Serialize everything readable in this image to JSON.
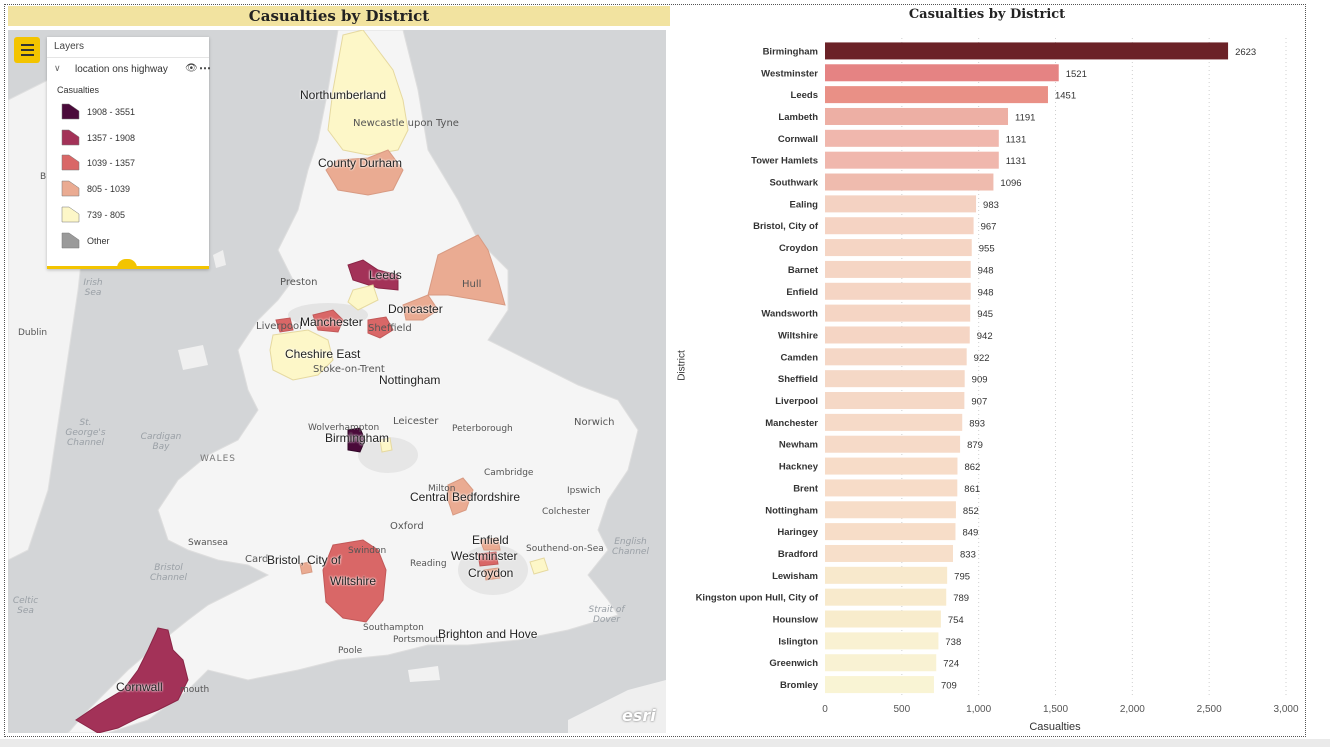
{
  "map": {
    "title": "Casualties by District",
    "legend": {
      "header": "Layers",
      "layer_name": "location ons highway",
      "subtitle": "Casualties",
      "items": [
        {
          "label": "1908 - 3551",
          "color": "#4a0a3a"
        },
        {
          "label": "1357 - 1908",
          "color": "#a33258"
        },
        {
          "label": "1039 - 1357",
          "color": "#d96767"
        },
        {
          "label": "805 - 1039",
          "color": "#eaab92"
        },
        {
          "label": "739 - 805",
          "color": "#fdf7c8"
        },
        {
          "label": "Other",
          "color": "#9a9a9a"
        }
      ]
    },
    "labels": {
      "northumberland": "Northumberland",
      "newcastle": "Newcastle upon Tyne",
      "county_durham": "County Durham",
      "preston": "Preston",
      "leeds": "Leeds",
      "hull": "Hull",
      "doncaster": "Doncaster",
      "liverpool": "Liverpool",
      "manchester": "Manchester",
      "sheffield": "Sheffield",
      "cheshire_east": "Cheshire East",
      "stoke": "Stoke-on-Trent",
      "nottingham": "Nottingham",
      "norwich": "Norwich",
      "wolverhampton": "Wolverhampton",
      "leicester": "Leicester",
      "birmingham": "Birmingham",
      "peterborough": "Peterborough",
      "wales": "WALES",
      "cambridge": "Cambridge",
      "milton": "Milton",
      "central_beds": "Central Bedfordshire",
      "ipswich": "Ipswich",
      "colchester": "Colchester",
      "oxford": "Oxford",
      "enfield": "Enfield",
      "swansea": "Swansea",
      "swindon": "Swindon",
      "card": "Card",
      "bristol": "Bristol, City of",
      "reading": "Reading",
      "westminster": "Westminster",
      "southend": "Southend-on-Sea",
      "croydon": "Croydon",
      "wiltshire": "Wiltshire",
      "southampton": "Southampton",
      "portsmouth": "Portsmouth",
      "brighton": "Brighton and Hove",
      "poole": "Poole",
      "cornwall": "Cornwall",
      "plymouth": "mouth",
      "dublin": "Dublin",
      "irish_sea": "Irish Sea",
      "st_georges": "St. George's Channel",
      "cardigan": "Cardigan Bay",
      "bristol_channel": "Bristol Channel",
      "celtic_sea": "Celtic Sea",
      "english_channel": "English Channel",
      "strait_dover": "Strait of Dover",
      "b_edge": "B",
      "esri": "esri"
    }
  },
  "chart_data": {
    "type": "bar",
    "orientation": "horizontal",
    "title": "Casualties by District",
    "xlabel": "Casualties",
    "ylabel": "District",
    "xlim": [
      0,
      3000
    ],
    "xticks": [
      0,
      500,
      1000,
      1500,
      2000,
      2500,
      3000
    ],
    "xtick_labels": [
      "0",
      "500",
      "1,000",
      "1,500",
      "2,000",
      "2,500",
      "3,000"
    ],
    "categories": [
      "Birmingham",
      "Westminster",
      "Leeds",
      "Lambeth",
      "Cornwall",
      "Tower Hamlets",
      "Southwark",
      "Ealing",
      "Bristol, City of",
      "Croydon",
      "Barnet",
      "Enfield",
      "Wandsworth",
      "Wiltshire",
      "Camden",
      "Sheffield",
      "Liverpool",
      "Manchester",
      "Newham",
      "Hackney",
      "Brent",
      "Nottingham",
      "Haringey",
      "Bradford",
      "Lewisham",
      "Kingston upon Hull, City of",
      "Hounslow",
      "Islington",
      "Greenwich",
      "Bromley"
    ],
    "values": [
      2623,
      1521,
      1451,
      1191,
      1131,
      1131,
      1096,
      983,
      967,
      955,
      948,
      948,
      945,
      942,
      922,
      909,
      907,
      893,
      879,
      862,
      861,
      852,
      849,
      833,
      795,
      789,
      754,
      738,
      724,
      709
    ],
    "colors": [
      "#6b2227",
      "#e58383",
      "#e99086",
      "#edafa4",
      "#f0b7ad",
      "#f0b7ad",
      "#efbbae",
      "#f4d2c2",
      "#f5d3c3",
      "#f5d5c4",
      "#f5d5c4",
      "#f5d5c4",
      "#f5d5c4",
      "#f5d5c4",
      "#f5d7c6",
      "#f5d8c6",
      "#f5d8c6",
      "#f6dac8",
      "#f6dac8",
      "#f7dcc8",
      "#f7dcc8",
      "#f7ddc8",
      "#f7ddc8",
      "#f7dfca",
      "#f8e9cc",
      "#f8eacc",
      "#f8eccc",
      "#f9f1d2",
      "#f9f2d3",
      "#f9f4d4"
    ],
    "grid": true
  }
}
